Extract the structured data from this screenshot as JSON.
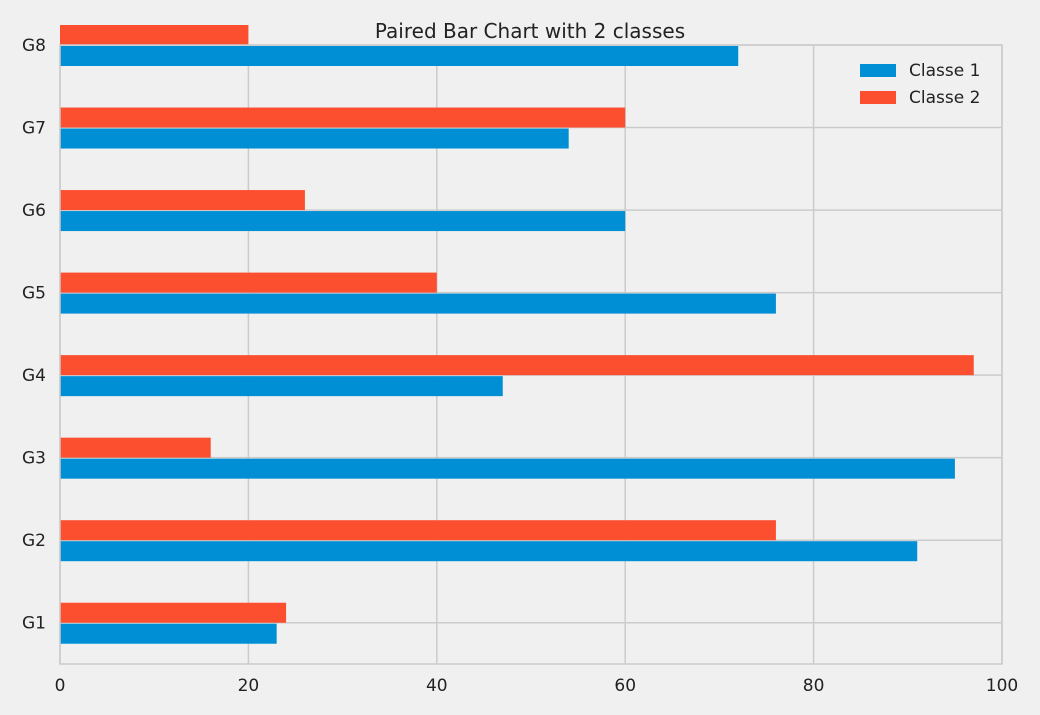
{
  "chart_data": {
    "type": "bar",
    "orientation": "horizontal",
    "title": "Paired Bar Chart with 2 classes",
    "xlabel": "",
    "ylabel": "",
    "categories": [
      "G1",
      "G2",
      "G3",
      "G4",
      "G5",
      "G6",
      "G7",
      "G8"
    ],
    "series": [
      {
        "name": "Classe 1",
        "color": "#008fd5",
        "values": [
          23,
          91,
          95,
          47,
          76,
          60,
          54,
          72
        ]
      },
      {
        "name": "Classe 2",
        "color": "#fc4f30",
        "values": [
          24,
          76,
          16,
          97,
          40,
          26,
          60,
          20
        ]
      }
    ],
    "xlim": [
      0,
      100
    ],
    "xticks": [
      0,
      20,
      40,
      60,
      80,
      100
    ],
    "grid": true,
    "legend_position": "top-right"
  }
}
